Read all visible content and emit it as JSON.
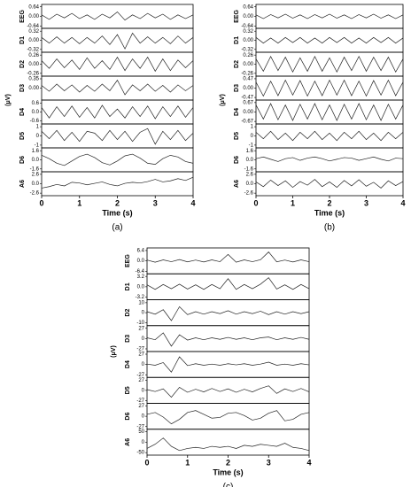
{
  "chart_data": [
    {
      "type": "line",
      "label": "(a)",
      "xlabel": "Time (s)",
      "ylabel": "(μV)",
      "color": "#222222",
      "xlim": [
        0,
        4
      ],
      "xticks": [
        0,
        1,
        2,
        3,
        4
      ],
      "x": [
        0,
        0.2,
        0.4,
        0.6,
        0.8,
        1,
        1.2,
        1.4,
        1.6,
        1.8,
        2,
        2.2,
        2.4,
        2.6,
        2.8,
        3,
        3.2,
        3.4,
        3.6,
        3.8,
        4
      ],
      "rows": [
        {
          "name": "EEG",
          "ylim": [
            -0.8,
            0.8
          ],
          "yticks": [
            0.64,
            {
              "value": 0,
              "label": "0.00"
            },
            -0.64
          ],
          "values": [
            0.1,
            -0.2,
            0.15,
            -0.1,
            0.2,
            -0.15,
            0.1,
            -0.2,
            0.15,
            -0.1,
            0.3,
            -0.25,
            0.1,
            -0.15,
            0.2,
            -0.1,
            0.15,
            -0.2,
            0.1,
            -0.15,
            0.1
          ]
        },
        {
          "name": "D1",
          "ylim": [
            -0.42,
            0.42
          ],
          "yticks": [
            0.32,
            {
              "value": 0,
              "label": "0.00"
            },
            -0.32
          ],
          "values": [
            0.1,
            -0.1,
            0.12,
            -0.1,
            0.1,
            -0.12,
            0.1,
            -0.1,
            0.15,
            -0.15,
            0.2,
            -0.3,
            0.25,
            -0.1,
            0.12,
            -0.1,
            0.1,
            -0.12,
            0.15,
            -0.1,
            0.1
          ]
        },
        {
          "name": "D2",
          "ylim": [
            -0.34,
            0.34
          ],
          "yticks": [
            0.26,
            {
              "value": 0,
              "label": "0.00"
            },
            -0.26
          ],
          "values": [
            0.1,
            -0.12,
            0.15,
            -0.1,
            0.12,
            -0.15,
            0.18,
            -0.12,
            0.1,
            -0.15,
            0.2,
            -0.18,
            0.15,
            -0.12,
            0.2,
            -0.2,
            0.15,
            -0.18,
            0.12,
            -0.1,
            0.1
          ]
        },
        {
          "name": "D3",
          "ylim": [
            -0.45,
            0.45
          ],
          "yticks": [
            0.35,
            {
              "value": 0,
              "label": "0.00"
            }
          ],
          "values": [
            0.1,
            -0.12,
            0.15,
            -0.1,
            0.12,
            -0.15,
            0.1,
            -0.12,
            0.15,
            -0.1,
            0.3,
            -0.25,
            0.12,
            -0.1,
            0.15,
            -0.12,
            0.1,
            -0.15,
            0.12,
            -0.1,
            0.1
          ]
        },
        {
          "name": "D4",
          "ylim": [
            -0.8,
            0.8
          ],
          "yticks": [
            0.6,
            {
              "value": 0,
              "label": "0.0"
            },
            -0.6
          ],
          "values": [
            0.3,
            -0.4,
            0.35,
            -0.3,
            0.4,
            -0.35,
            0.3,
            -0.4,
            0.45,
            -0.3,
            0.2,
            -0.4,
            0.35,
            -0.3,
            0.4,
            -0.45,
            0.35,
            -0.3,
            0.4,
            -0.35,
            0.3
          ]
        },
        {
          "name": "D5",
          "ylim": [
            -1.3,
            1.3
          ],
          "yticks": [
            1,
            0,
            -1
          ],
          "values": [
            0.5,
            -0.3,
            0.6,
            -0.5,
            0.4,
            -0.6,
            0.5,
            0.3,
            -0.5,
            0.6,
            -0.4,
            0.5,
            -0.6,
            0.4,
            0.8,
            -0.9,
            0.5,
            -0.4,
            0.6,
            -0.5,
            0.3
          ]
        },
        {
          "name": "D6",
          "ylim": [
            -2.1,
            2.1
          ],
          "yticks": [
            1.6,
            {
              "value": 0,
              "label": "0.0"
            },
            -1.6
          ],
          "values": [
            0.8,
            0.2,
            -0.6,
            -1.0,
            -0.2,
            0.6,
            1.0,
            0.4,
            -0.5,
            -0.9,
            -0.2,
            0.7,
            1.0,
            0.3,
            -0.6,
            -0.8,
            0.2,
            0.8,
            0.5,
            -0.3,
            -0.6
          ]
        },
        {
          "name": "A6",
          "ylim": [
            -3.3,
            3.3
          ],
          "yticks": [
            2.6,
            {
              "value": 0,
              "label": "0.0"
            },
            -2.6
          ],
          "values": [
            -1.2,
            -0.8,
            -0.2,
            -0.6,
            0.4,
            0.2,
            -0.3,
            0.1,
            0.5,
            -0.2,
            -0.6,
            0.1,
            0.4,
            0.2,
            0.6,
            1.2,
            0.5,
            0.8,
            1.4,
            0.9,
            1.8
          ]
        }
      ]
    },
    {
      "type": "line",
      "label": "(b)",
      "xlabel": "Time (s)",
      "ylabel": "(μV)",
      "color": "#222222",
      "xlim": [
        0,
        4
      ],
      "xticks": [
        0,
        1,
        2,
        3,
        4
      ],
      "x": [
        0,
        0.2,
        0.4,
        0.6,
        0.8,
        1,
        1.2,
        1.4,
        1.6,
        1.8,
        2,
        2.2,
        2.4,
        2.6,
        2.8,
        3,
        3.2,
        3.4,
        3.6,
        3.8,
        4
      ],
      "rows": [
        {
          "name": "EEG",
          "ylim": [
            -0.8,
            0.8
          ],
          "yticks": [
            0.64,
            {
              "value": 0,
              "label": "0.00"
            },
            -0.64
          ],
          "values": [
            0.1,
            -0.15,
            0.12,
            -0.1,
            0.15,
            -0.12,
            0.1,
            -0.15,
            0.12,
            -0.1,
            0.15,
            -0.12,
            0.1,
            -0.15,
            0.12,
            -0.1,
            0.15,
            -0.12,
            0.1,
            -0.15,
            0.1
          ]
        },
        {
          "name": "D1",
          "ylim": [
            -0.42,
            0.42
          ],
          "yticks": [
            0.32,
            {
              "value": 0,
              "label": "0.00"
            },
            -0.32
          ],
          "values": [
            0.1,
            -0.1,
            0.08,
            -0.1,
            0.1,
            -0.08,
            0.1,
            -0.1,
            0.08,
            -0.1,
            0.1,
            -0.08,
            0.1,
            -0.1,
            0.08,
            -0.1,
            0.1,
            -0.08,
            0.1,
            -0.1,
            0.08
          ]
        },
        {
          "name": "D2",
          "ylim": [
            -0.34,
            0.34
          ],
          "yticks": [
            0.26,
            {
              "value": 0,
              "label": "0.00"
            },
            -0.26
          ],
          "values": [
            0.15,
            -0.2,
            0.22,
            -0.18,
            0.2,
            -0.22,
            0.18,
            -0.2,
            0.22,
            -0.2,
            0.18,
            -0.22,
            0.2,
            -0.18,
            0.22,
            -0.2,
            0.2,
            -0.18,
            0.2,
            -0.22,
            0.15
          ]
        },
        {
          "name": "D3",
          "ylim": [
            -0.6,
            0.6
          ],
          "yticks": [
            0.47,
            {
              "value": 0,
              "label": "0.00"
            },
            -0.47
          ],
          "values": [
            0.3,
            -0.4,
            0.35,
            -0.38,
            0.4,
            -0.35,
            0.38,
            -0.4,
            0.35,
            -0.38,
            0.4,
            -0.35,
            0.4,
            -0.38,
            0.35,
            -0.4,
            0.38,
            -0.35,
            0.4,
            -0.38,
            0.3
          ]
        },
        {
          "name": "D4",
          "ylim": [
            -0.85,
            0.85
          ],
          "yticks": [
            0.67,
            {
              "value": 0,
              "label": "0.00"
            },
            -0.67
          ],
          "values": [
            0.5,
            -0.5,
            0.6,
            -0.55,
            0.5,
            -0.6,
            0.55,
            -0.5,
            0.6,
            -0.55,
            0.5,
            -0.6,
            0.55,
            -0.5,
            0.6,
            -0.55,
            0.5,
            -0.6,
            0.55,
            -0.5,
            0.5
          ]
        },
        {
          "name": "D5",
          "ylim": [
            -1.3,
            1.3
          ],
          "yticks": [
            1,
            0,
            -1
          ],
          "values": [
            0.4,
            -0.3,
            0.5,
            -0.4,
            0.3,
            -0.5,
            0.4,
            -0.3,
            0.5,
            -0.4,
            0.3,
            -0.5,
            0.4,
            -0.3,
            0.5,
            -0.4,
            0.3,
            -0.5,
            0.4,
            -0.3,
            0.4
          ]
        },
        {
          "name": "D6",
          "ylim": [
            -2.1,
            2.1
          ],
          "yticks": [
            1.6,
            {
              "value": 0,
              "label": "0.0"
            },
            -1.6
          ],
          "values": [
            0.2,
            0.5,
            0.1,
            -0.3,
            0.2,
            0.4,
            -0.1,
            0.3,
            0.5,
            0.2,
            -0.2,
            0.1,
            0.4,
            0.3,
            -0.1,
            0.2,
            0.5,
            0.1,
            -0.2,
            0.3,
            0.2
          ]
        },
        {
          "name": "A6",
          "ylim": [
            -3.3,
            3.3
          ],
          "yticks": [
            2.6,
            {
              "value": 0,
              "label": "0.0"
            },
            -2.6
          ],
          "values": [
            0.5,
            -0.8,
            1.0,
            -0.5,
            0.8,
            -1.0,
            0.6,
            -0.4,
            1.2,
            -0.8,
            0.5,
            -1.0,
            0.9,
            -0.6,
            1.1,
            -0.7,
            0.4,
            -1.2,
            0.8,
            -0.5,
            0.6
          ]
        }
      ]
    },
    {
      "type": "line",
      "label": "(c)",
      "xlabel": "Time (s)",
      "ylabel": "(μV)",
      "color": "#222222",
      "xlim": [
        0,
        4
      ],
      "xticks": [
        0,
        1,
        2,
        3,
        4
      ],
      "x": [
        0,
        0.2,
        0.4,
        0.6,
        0.8,
        1,
        1.2,
        1.4,
        1.6,
        1.8,
        2,
        2.2,
        2.4,
        2.6,
        2.8,
        3,
        3.2,
        3.4,
        3.6,
        3.8,
        4
      ],
      "rows": [
        {
          "name": "EEG",
          "ylim": [
            -8,
            8
          ],
          "yticks": [
            6.4,
            {
              "value": 0,
              "label": "0.0"
            },
            -6.4
          ],
          "values": [
            0.5,
            -0.8,
            0.6,
            -0.5,
            0.8,
            -0.6,
            0.5,
            -0.7,
            0.6,
            -0.5,
            4.0,
            -0.8,
            0.6,
            -0.5,
            0.7,
            5.5,
            -0.6,
            0.5,
            -0.7,
            0.6,
            -0.5
          ]
        },
        {
          "name": "D1",
          "ylim": [
            -4,
            4
          ],
          "yticks": [
            3.2,
            {
              "value": 0,
              "label": "0.0"
            },
            -3.2
          ],
          "values": [
            0.6,
            -0.8,
            0.7,
            -0.6,
            0.8,
            -0.7,
            0.6,
            -0.8,
            0.7,
            -0.6,
            2.5,
            -0.8,
            0.7,
            -0.6,
            0.8,
            2.8,
            -0.7,
            0.6,
            -0.8,
            0.7,
            -0.6
          ]
        },
        {
          "name": "D2",
          "ylim": [
            -13,
            13
          ],
          "yticks": [
            10,
            0,
            -10
          ],
          "values": [
            1,
            -1.5,
            3,
            -8,
            6,
            -2,
            1,
            -1.5,
            1,
            -1,
            2,
            -1.5,
            1,
            -1,
            1.5,
            -2,
            1,
            -1.5,
            1,
            -1,
            1
          ]
        },
        {
          "name": "D3",
          "ylim": [
            -34,
            34
          ],
          "yticks": [
            27,
            0,
            -27
          ],
          "values": [
            2,
            -3,
            15,
            -20,
            10,
            -4,
            2,
            -3,
            2,
            -2,
            3,
            -2,
            2,
            -3,
            2,
            4,
            -3,
            2,
            -2,
            3,
            -2
          ]
        },
        {
          "name": "D4",
          "ylim": [
            -34,
            34
          ],
          "yticks": [
            27,
            0,
            -27
          ],
          "values": [
            1,
            -2,
            5,
            -20,
            20,
            -3,
            2,
            -2,
            1,
            -2,
            2,
            -1,
            2,
            -2,
            1,
            6,
            -2,
            1,
            -2,
            2,
            -1
          ]
        },
        {
          "name": "D5",
          "ylim": [
            -34,
            34
          ],
          "yticks": [
            27,
            0,
            -27
          ],
          "values": [
            2,
            -3,
            4,
            -18,
            8,
            -5,
            3,
            -4,
            5,
            -3,
            4,
            -5,
            3,
            -4,
            5,
            12,
            -8,
            4,
            -3,
            5,
            -4
          ]
        },
        {
          "name": "D6",
          "ylim": [
            -34,
            34
          ],
          "yticks": [
            27,
            0,
            -27
          ],
          "values": [
            5,
            10,
            -2,
            -20,
            -8,
            10,
            15,
            5,
            -5,
            -3,
            8,
            10,
            2,
            -10,
            -5,
            8,
            15,
            -12,
            -8,
            5,
            10
          ]
        },
        {
          "name": "A6",
          "ylim": [
            -62,
            62
          ],
          "yticks": [
            50,
            0,
            -50
          ],
          "values": [
            -30,
            -10,
            20,
            -20,
            -40,
            -30,
            -25,
            -30,
            -20,
            -25,
            -20,
            -30,
            -15,
            -20,
            -10,
            -15,
            -20,
            -5,
            -25,
            -30,
            -40
          ]
        }
      ]
    }
  ]
}
